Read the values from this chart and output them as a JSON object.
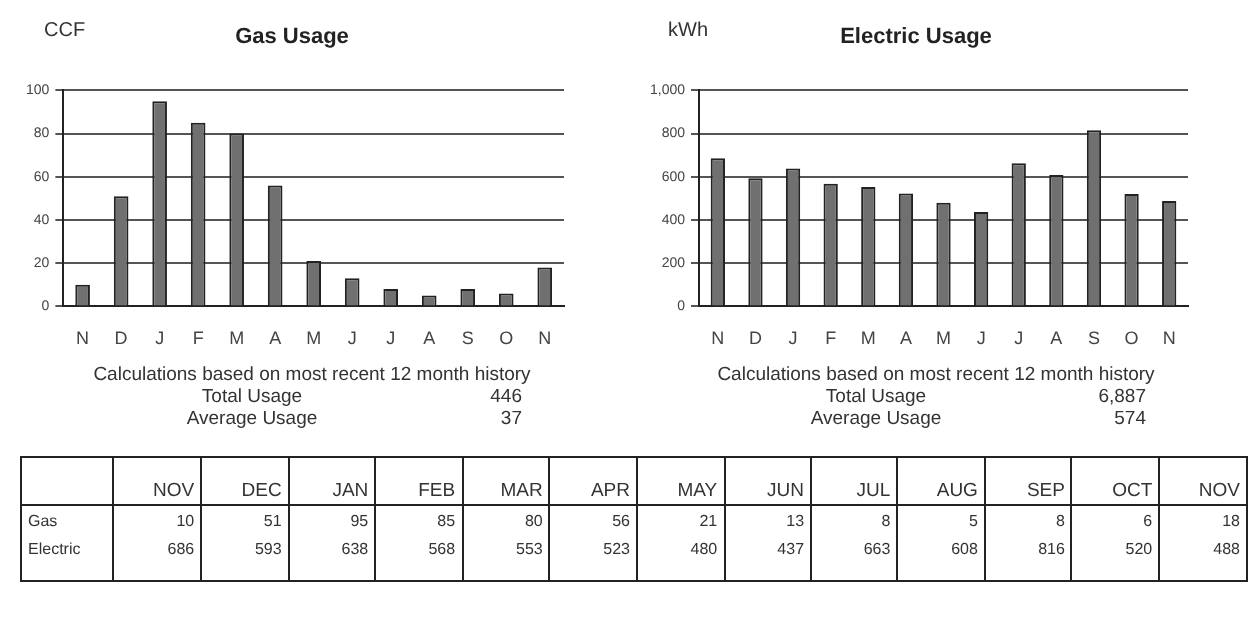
{
  "chart_data": [
    {
      "type": "bar",
      "title": "Gas Usage",
      "ylabel": "CCF",
      "categories": [
        "N",
        "D",
        "J",
        "F",
        "M",
        "A",
        "M",
        "J",
        "J",
        "A",
        "S",
        "O",
        "N"
      ],
      "values": [
        10,
        51,
        95,
        85,
        80,
        56,
        21,
        13,
        8,
        5,
        8,
        6,
        18
      ],
      "color": "#707070",
      "ylim": [
        0,
        100
      ],
      "yticks": [
        0,
        20,
        40,
        60,
        80,
        100
      ],
      "grid": "y",
      "legend": false,
      "annotations": [
        "Calculations based on most recent 12 month history",
        "Total Usage",
        "446",
        "Average Usage",
        "37"
      ]
    },
    {
      "type": "bar",
      "title": "Electric Usage",
      "ylabel": "kWh",
      "categories": [
        "N",
        "D",
        "J",
        "F",
        "M",
        "A",
        "M",
        "J",
        "J",
        "A",
        "S",
        "O",
        "N"
      ],
      "values": [
        686,
        593,
        638,
        568,
        553,
        523,
        480,
        437,
        663,
        608,
        816,
        520,
        488
      ],
      "color": "#707070",
      "ylim": [
        0,
        1000
      ],
      "yticks": [
        0,
        200,
        400,
        600,
        800,
        {
          "value": 1000,
          "label": "1,000"
        }
      ],
      "grid": "y",
      "legend": false,
      "annotations": [
        "Calculations based on most recent 12 month history",
        "Total Usage",
        "6,887",
        "Average Usage",
        "574"
      ]
    },
    {
      "type": "other",
      "categories": [
        "NOV",
        "DEC",
        "JAN",
        "FEB",
        "MAR",
        "APR",
        "MAY",
        "JUN",
        "JUL",
        "AUG",
        "SEP",
        "OCT",
        "NOV"
      ],
      "data_labels": true,
      "series": [
        {
          "name": "Gas",
          "values": [
            10,
            51,
            95,
            85,
            80,
            56,
            21,
            13,
            8,
            5,
            8,
            6,
            18
          ]
        },
        {
          "name": "Electric",
          "values": [
            686,
            593,
            638,
            568,
            553,
            523,
            480,
            437,
            663,
            608,
            816,
            520,
            488
          ]
        }
      ]
    }
  ]
}
